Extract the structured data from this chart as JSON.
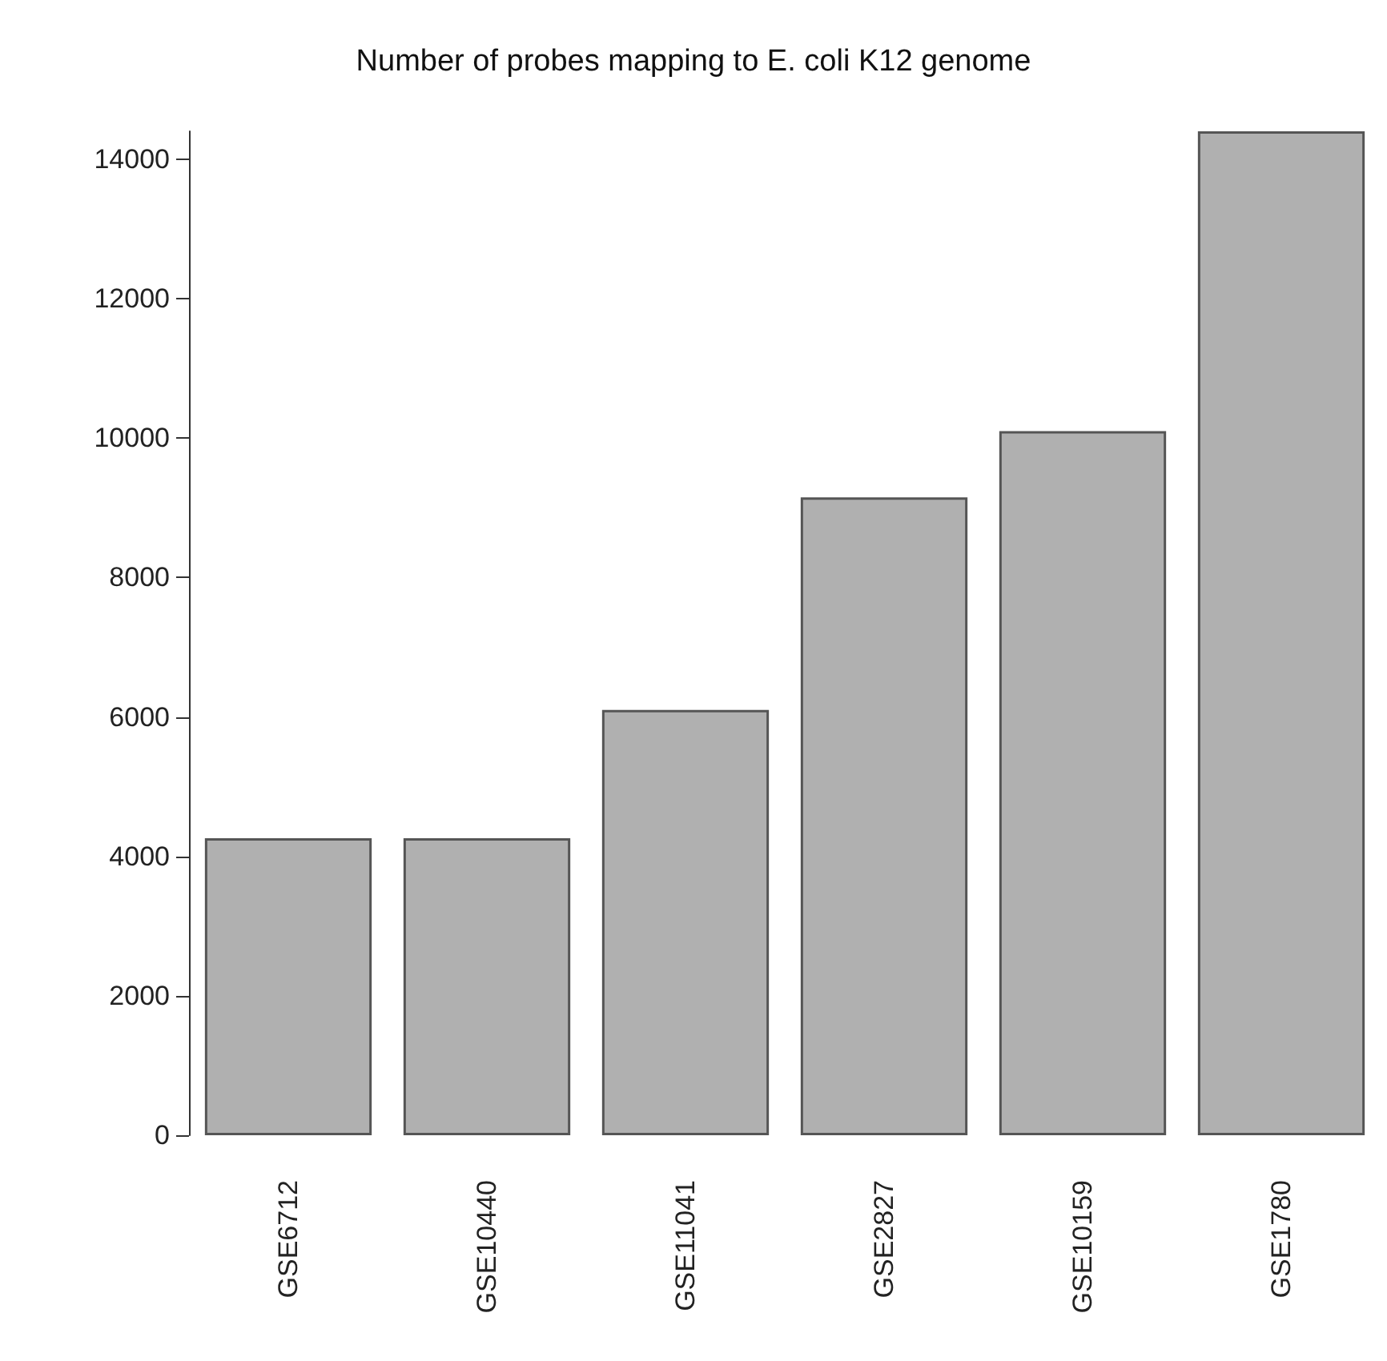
{
  "chart_data": {
    "type": "bar",
    "title": "Number of probes mapping to E. coli K12 genome",
    "categories": [
      "GSE6712",
      "GSE10440",
      "GSE11041",
      "GSE2827",
      "GSE10159",
      "GSE1780"
    ],
    "values": [
      4260,
      4260,
      6100,
      9150,
      10100,
      14400
    ],
    "color": "#b0b0b0",
    "ylim": [
      0,
      14400
    ],
    "yticks": [
      0,
      2000,
      4000,
      6000,
      8000,
      10000,
      12000,
      14000
    ],
    "grid": false
  }
}
